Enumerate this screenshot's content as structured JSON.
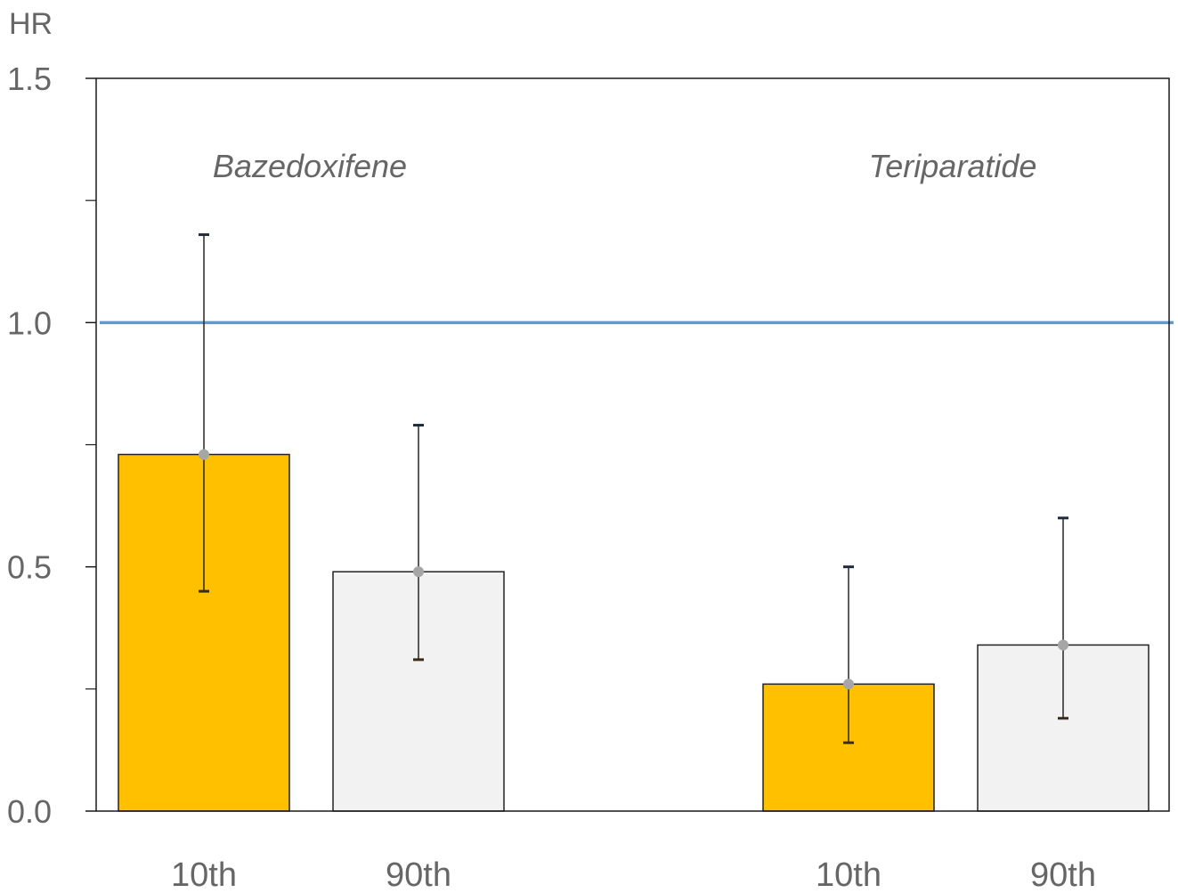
{
  "chart_data": {
    "type": "bar",
    "title": "",
    "ylabel": "HR",
    "xlabel": "",
    "ylim": [
      0,
      1.5
    ],
    "yticks": [
      "0.0",
      "0.5",
      "1.0",
      "1.5"
    ],
    "minor_yticks": [
      0.25,
      0.75,
      1.25
    ],
    "reference_line": {
      "y": 1.0,
      "color": "#5b9bd5"
    },
    "grid": false,
    "legend": "none",
    "groups": [
      {
        "label": "Bazedoxifene",
        "bars": [
          {
            "category": "10th",
            "value": 0.73,
            "ci_low": 0.45,
            "ci_high": 1.18,
            "color": "#ffc000"
          },
          {
            "category": "90th",
            "value": 0.49,
            "ci_low": 0.31,
            "ci_high": 0.79,
            "color": "#f2f2f2"
          }
        ]
      },
      {
        "label": "Teriparatide",
        "bars": [
          {
            "category": "10th",
            "value": 0.26,
            "ci_low": 0.14,
            "ci_high": 0.5,
            "color": "#ffc000"
          },
          {
            "category": "90th",
            "value": 0.34,
            "ci_low": 0.19,
            "ci_high": 0.6,
            "color": "#f2f2f2"
          }
        ]
      }
    ]
  }
}
